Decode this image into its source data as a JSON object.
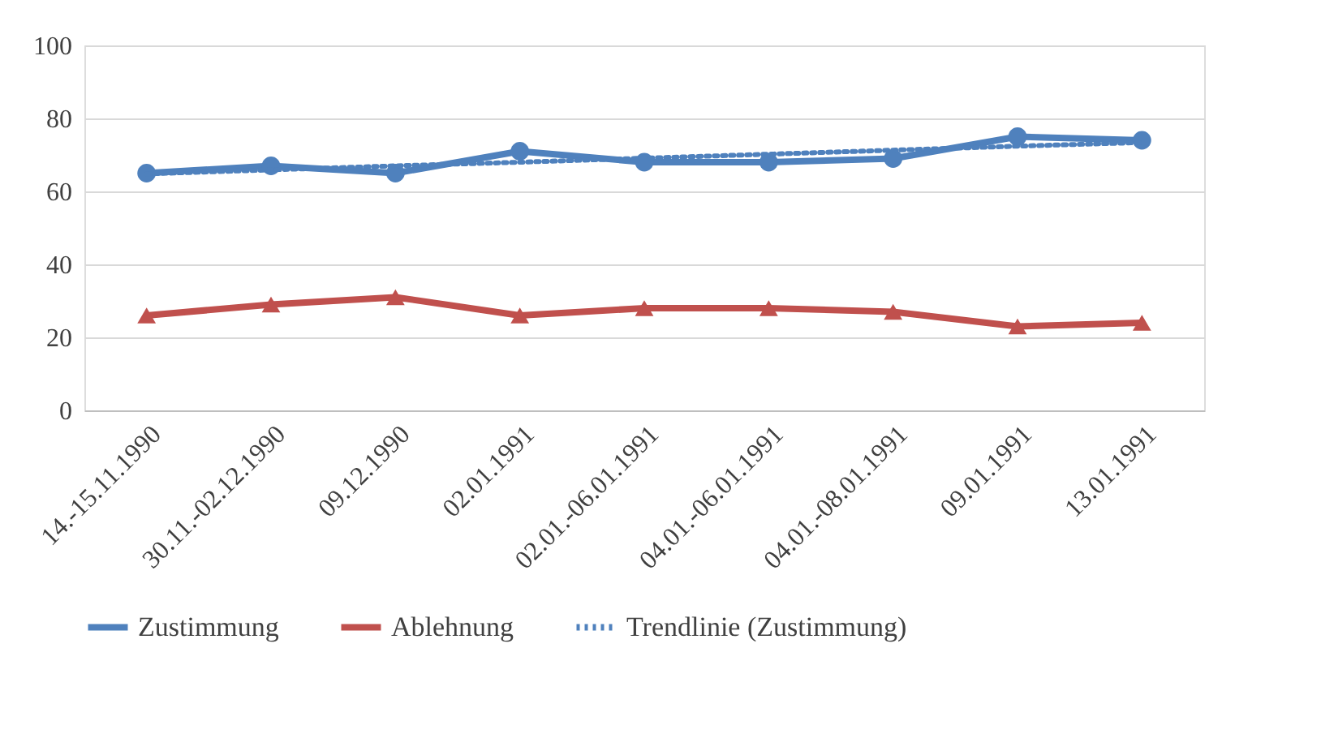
{
  "chart_data": {
    "type": "line",
    "categories": [
      "14.-15.11.1990",
      "30.11.-02.12.1990",
      "09.12.1990",
      "02.01.1991",
      "02.01.-06.01.1991",
      "04.01.-06.01.1991",
      "04.01.-08.01.1991",
      "09.01.1991",
      "13.01.1991"
    ],
    "series": [
      {
        "name": "Zustimmung",
        "color": "#4f81bd",
        "marker": "circle",
        "line_style": "solid",
        "values": [
          65,
          67,
          65,
          71,
          68,
          68,
          69,
          75,
          74
        ]
      },
      {
        "name": "Ablehnung",
        "color": "#c0504d",
        "marker": "triangle",
        "line_style": "solid",
        "values": [
          26,
          29,
          31,
          26,
          28,
          28,
          27,
          23,
          24
        ]
      },
      {
        "name": "Trendlinie (Zustimmung)",
        "color": "#4f81bd",
        "marker": "none",
        "line_style": "dotted",
        "values": [
          64.8,
          65.9,
          67.0,
          68.0,
          69.1,
          70.2,
          71.3,
          72.4,
          73.4
        ]
      }
    ],
    "ylim": [
      0,
      100
    ],
    "yticks": [
      0,
      20,
      40,
      60,
      80,
      100
    ],
    "grid": "y",
    "legend": "bottom"
  }
}
